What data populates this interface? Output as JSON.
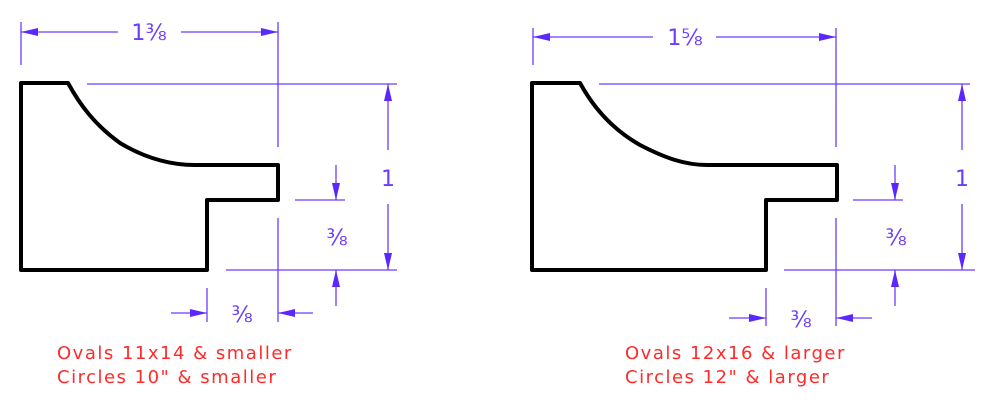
{
  "colors": {
    "dimension": "#6b3cff",
    "profile": "#000000",
    "notes": "#ff2a2a"
  },
  "profiles": [
    {
      "overall_width": "1⅜",
      "overall_height": "1",
      "rabbet_depth": "⅜",
      "rabbet_width": "⅜",
      "notes": [
        "Ovals 11x14 & smaller",
        "Circles 10\" & smaller"
      ]
    },
    {
      "overall_width": "1⅝",
      "overall_height": "1",
      "rabbet_depth": "⅜",
      "rabbet_width": "⅜",
      "notes": [
        "Ovals 12x16 & larger",
        "Circles 12\" & larger"
      ]
    }
  ]
}
